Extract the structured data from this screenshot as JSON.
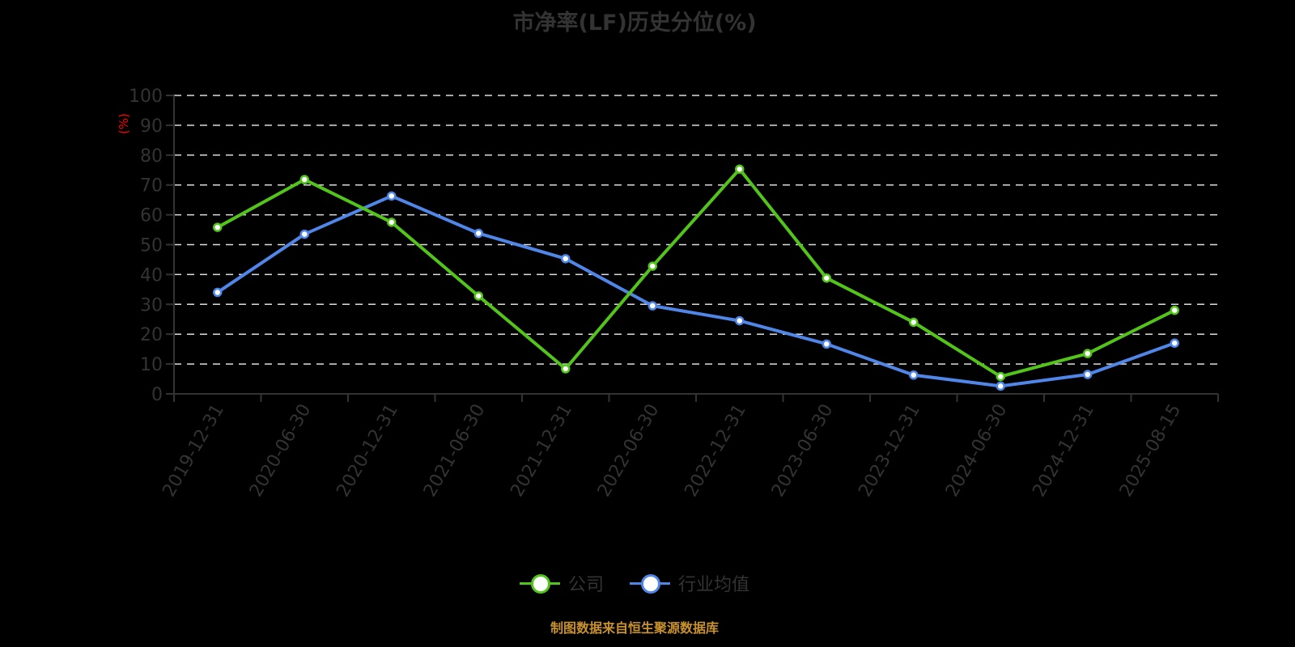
{
  "title": "市净率(LF)历史分位(%)",
  "source": "制图数据来自恒生聚源数据库",
  "colors": {
    "company": "#52c41a",
    "industry": "#4f86e8",
    "grid": "#dddddd",
    "axis": "#333333",
    "unit_label": "#ff0000"
  },
  "legend": [
    {
      "name": "公司",
      "color": "#52c41a"
    },
    {
      "name": "行业均值",
      "color": "#4f86e8"
    }
  ],
  "chart_data": {
    "type": "line",
    "title": "市净率(LF)历史分位(%)",
    "xlabel": "",
    "ylabel": "(%)",
    "ylim": [
      0,
      100
    ],
    "yticks": [
      0,
      10,
      20,
      30,
      40,
      50,
      60,
      70,
      80,
      90,
      100
    ],
    "grid": true,
    "legend_position": "bottom",
    "categories": [
      "2019-12-31",
      "2020-06-30",
      "2020-12-31",
      "2021-06-30",
      "2021-12-31",
      "2022-06-30",
      "2022-12-31",
      "2023-06-30",
      "2023-12-31",
      "2024-06-30",
      "2024-12-31",
      "2025-08-15"
    ],
    "series": [
      {
        "name": "公司",
        "values": [
          55.8,
          71.8,
          57.5,
          32.8,
          8.4,
          42.8,
          75.3,
          38.8,
          24.0,
          5.8,
          13.5,
          28.0
        ]
      },
      {
        "name": "行业均值",
        "values": [
          34.0,
          53.5,
          66.3,
          53.8,
          45.3,
          29.5,
          24.5,
          16.7,
          6.3,
          2.6,
          6.5,
          17.0
        ]
      }
    ]
  }
}
